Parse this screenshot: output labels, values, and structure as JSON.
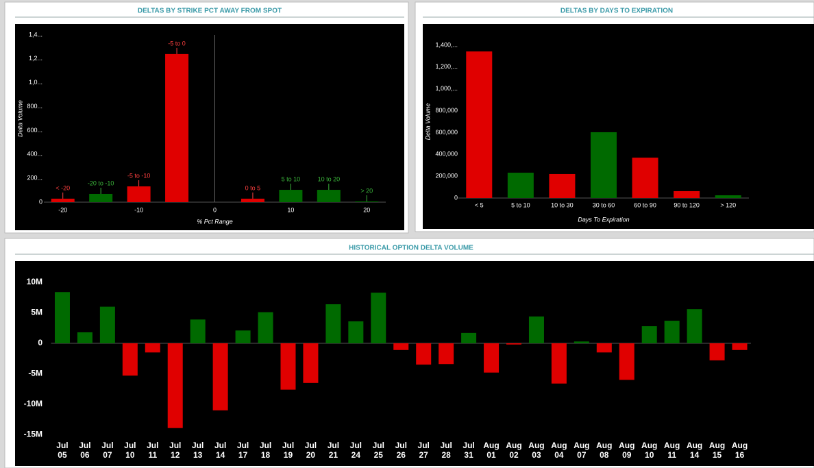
{
  "chart_data": [
    {
      "type": "bar",
      "title": "DELTAS BY STRIKE PCT AWAY FROM SPOT",
      "x_label": "% Pct Range",
      "y_label": "Delta Volume",
      "x": [
        -20,
        -15,
        -10,
        -5,
        5,
        10,
        15,
        20
      ],
      "labels": [
        "< -20",
        "-20 to -10",
        "-5 to -10",
        "-5 to 0",
        "0 to 5",
        "5 to 10",
        "10 to 20",
        "> 20"
      ],
      "values": [
        29000,
        69000,
        132000,
        1240000,
        29000,
        103000,
        103000,
        6000
      ],
      "colors": [
        "#e00000",
        "#006a00",
        "#e00000",
        "#e00000",
        "#e00000",
        "#006a00",
        "#006a00",
        "#006a00"
      ],
      "label_colors": [
        "#ff4040",
        "#3cb83c",
        "#ff4040",
        "#ff4040",
        "#ff4040",
        "#3cb83c",
        "#3cb83c",
        "#3cb83c"
      ],
      "xlim": [
        -22.5,
        22.5
      ],
      "xticks": [
        -20,
        -10,
        0,
        10,
        20
      ],
      "ylim": [
        0,
        1400000
      ],
      "yticks": [
        0,
        {
          "value": 200000,
          "label": "200..."
        },
        {
          "value": 400000,
          "label": "400..."
        },
        {
          "value": 600000,
          "label": "600..."
        },
        {
          "value": 800000,
          "label": "800..."
        },
        {
          "value": 1000000,
          "label": "1,0..."
        },
        {
          "value": 1200000,
          "label": "1,2..."
        },
        {
          "value": 1400000,
          "label": "1,4..."
        }
      ]
    },
    {
      "type": "bar",
      "title": "DELTAS BY DAYS TO EXPIRATION",
      "x_label": "Days To Expiration",
      "y_label": "Delta Volume",
      "categories": [
        "< 5",
        "5 to 10",
        "10 to 30",
        "30 to 60",
        "60 to 90",
        "90 to 120",
        "> 120"
      ],
      "values": [
        1343000,
        232000,
        220000,
        603000,
        370000,
        63000,
        25000
      ],
      "colors": [
        "#e00000",
        "#006a00",
        "#e00000",
        "#006a00",
        "#e00000",
        "#e00000",
        "#006a00"
      ],
      "ylim": [
        0,
        1400000
      ],
      "yticks": [
        0,
        {
          "value": 200000,
          "label": "200,000"
        },
        {
          "value": 400000,
          "label": "400,000"
        },
        {
          "value": 600000,
          "label": "600,000"
        },
        {
          "value": 800000,
          "label": "800,000"
        },
        {
          "value": 1000000,
          "label": "1,000,..."
        },
        {
          "value": 1200000,
          "label": "1,200,..."
        },
        {
          "value": 1400000,
          "label": "1,400,..."
        }
      ]
    },
    {
      "type": "bar",
      "title": "HISTORICAL OPTION DELTA VOLUME",
      "categories": [
        "Jul 05",
        "Jul 06",
        "Jul 07",
        "Jul 10",
        "Jul 11",
        "Jul 12",
        "Jul 13",
        "Jul 14",
        "Jul 17",
        "Jul 18",
        "Jul 19",
        "Jul 20",
        "Jul 21",
        "Jul 24",
        "Jul 25",
        "Jul 26",
        "Jul 27",
        "Jul 28",
        "Jul 31",
        "Aug 01",
        "Aug 02",
        "Aug 03",
        "Aug 04",
        "Aug 07",
        "Aug 08",
        "Aug 09",
        "Aug 10",
        "Aug 11",
        "Aug 14",
        "Aug 15",
        "Aug 16"
      ],
      "values": [
        8400000,
        1800000,
        6000000,
        -5300000,
        -1500000,
        -13900000,
        3900000,
        -11000000,
        2100000,
        5100000,
        -7600000,
        -6500000,
        6400000,
        3600000,
        8300000,
        -1100000,
        -3500000,
        -3400000,
        1700000,
        -4800000,
        -200000,
        4400000,
        -6600000,
        300000,
        -1500000,
        -6000000,
        2800000,
        3700000,
        5600000,
        -2800000,
        -1100000
      ],
      "colors": [
        "#006a00",
        "#006a00",
        "#006a00",
        "#e00000",
        "#e00000",
        "#e00000",
        "#006a00",
        "#e00000",
        "#006a00",
        "#006a00",
        "#e00000",
        "#e00000",
        "#006a00",
        "#006a00",
        "#006a00",
        "#e00000",
        "#e00000",
        "#e00000",
        "#006a00",
        "#e00000",
        "#e00000",
        "#006a00",
        "#e00000",
        "#006a00",
        "#e00000",
        "#e00000",
        "#006a00",
        "#006a00",
        "#006a00",
        "#e00000",
        "#e00000"
      ],
      "ylim": [
        -15000000,
        10000000
      ],
      "yticks": [
        {
          "value": 10000000,
          "label": "10M"
        },
        {
          "value": 5000000,
          "label": "5M"
        },
        0,
        {
          "value": -5000000,
          "label": "-5M"
        },
        {
          "value": -10000000,
          "label": "-10M"
        },
        {
          "value": -15000000,
          "label": "-15M"
        }
      ]
    }
  ]
}
